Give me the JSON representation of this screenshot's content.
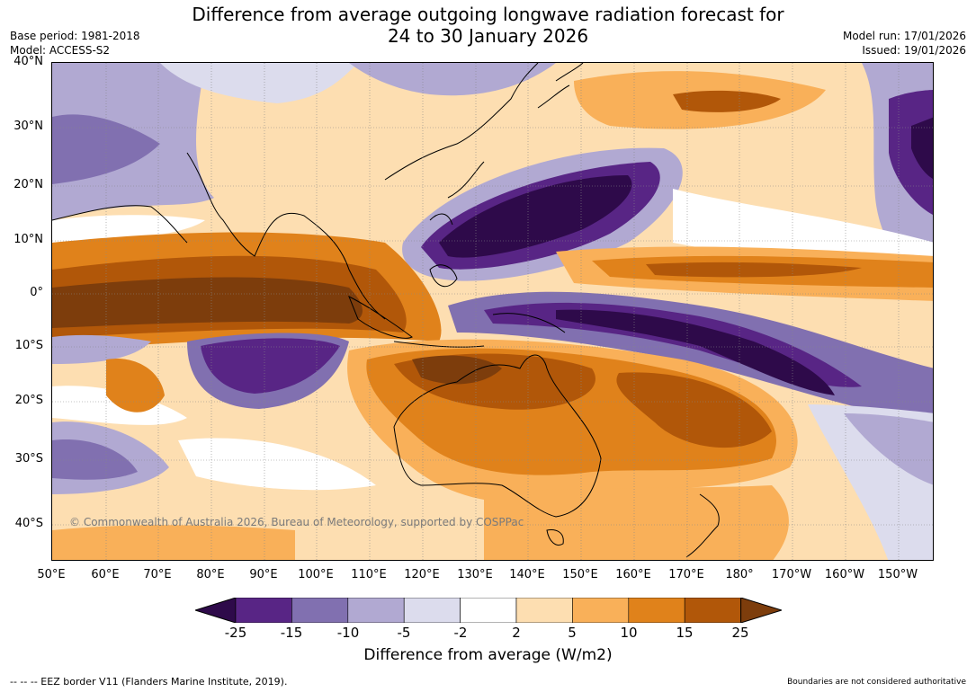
{
  "title_line1": "Difference from average outgoing longwave radiation forecast for",
  "title_line2": "24 to 30 January 2026",
  "meta_left": {
    "base_period": "Base period: 1981-2018",
    "model": "Model: ACCESS-S2"
  },
  "meta_right": {
    "model_run": "Model run: 17/01/2026",
    "issued": "Issued: 19/01/2026"
  },
  "lat_labels": [
    "40°N",
    "30°N",
    "20°N",
    "10°N",
    "0°",
    "10°S",
    "20°S",
    "30°S",
    "40°S"
  ],
  "lon_labels": [
    "50°E",
    "60°E",
    "70°E",
    "80°E",
    "90°E",
    "100°E",
    "110°E",
    "120°E",
    "130°E",
    "140°E",
    "150°E",
    "160°E",
    "170°E",
    "180°",
    "170°W",
    "160°W",
    "150°W"
  ],
  "colorbar": {
    "labels": [
      "-25",
      "-15",
      "-10",
      "-5",
      "-2",
      "2",
      "5",
      "10",
      "15",
      "25"
    ],
    "colors": [
      "#2e0a4a",
      "#582585",
      "#8170b0",
      "#b1a9d2",
      "#dcdced",
      "#ffffff",
      "#fddeb1",
      "#f9b059",
      "#e0821b",
      "#b15709",
      "#7d3d0c"
    ],
    "title": "Difference from average (W/m2)"
  },
  "copyright": "© Commonwealth of Australia 2026, Bureau of Meteorology, supported by COSPPac",
  "footer_left": "--  --  -- EEZ border V11 (Flanders Marine Institute, 2019).",
  "footer_right": "Boundaries are not considered authoritative"
}
